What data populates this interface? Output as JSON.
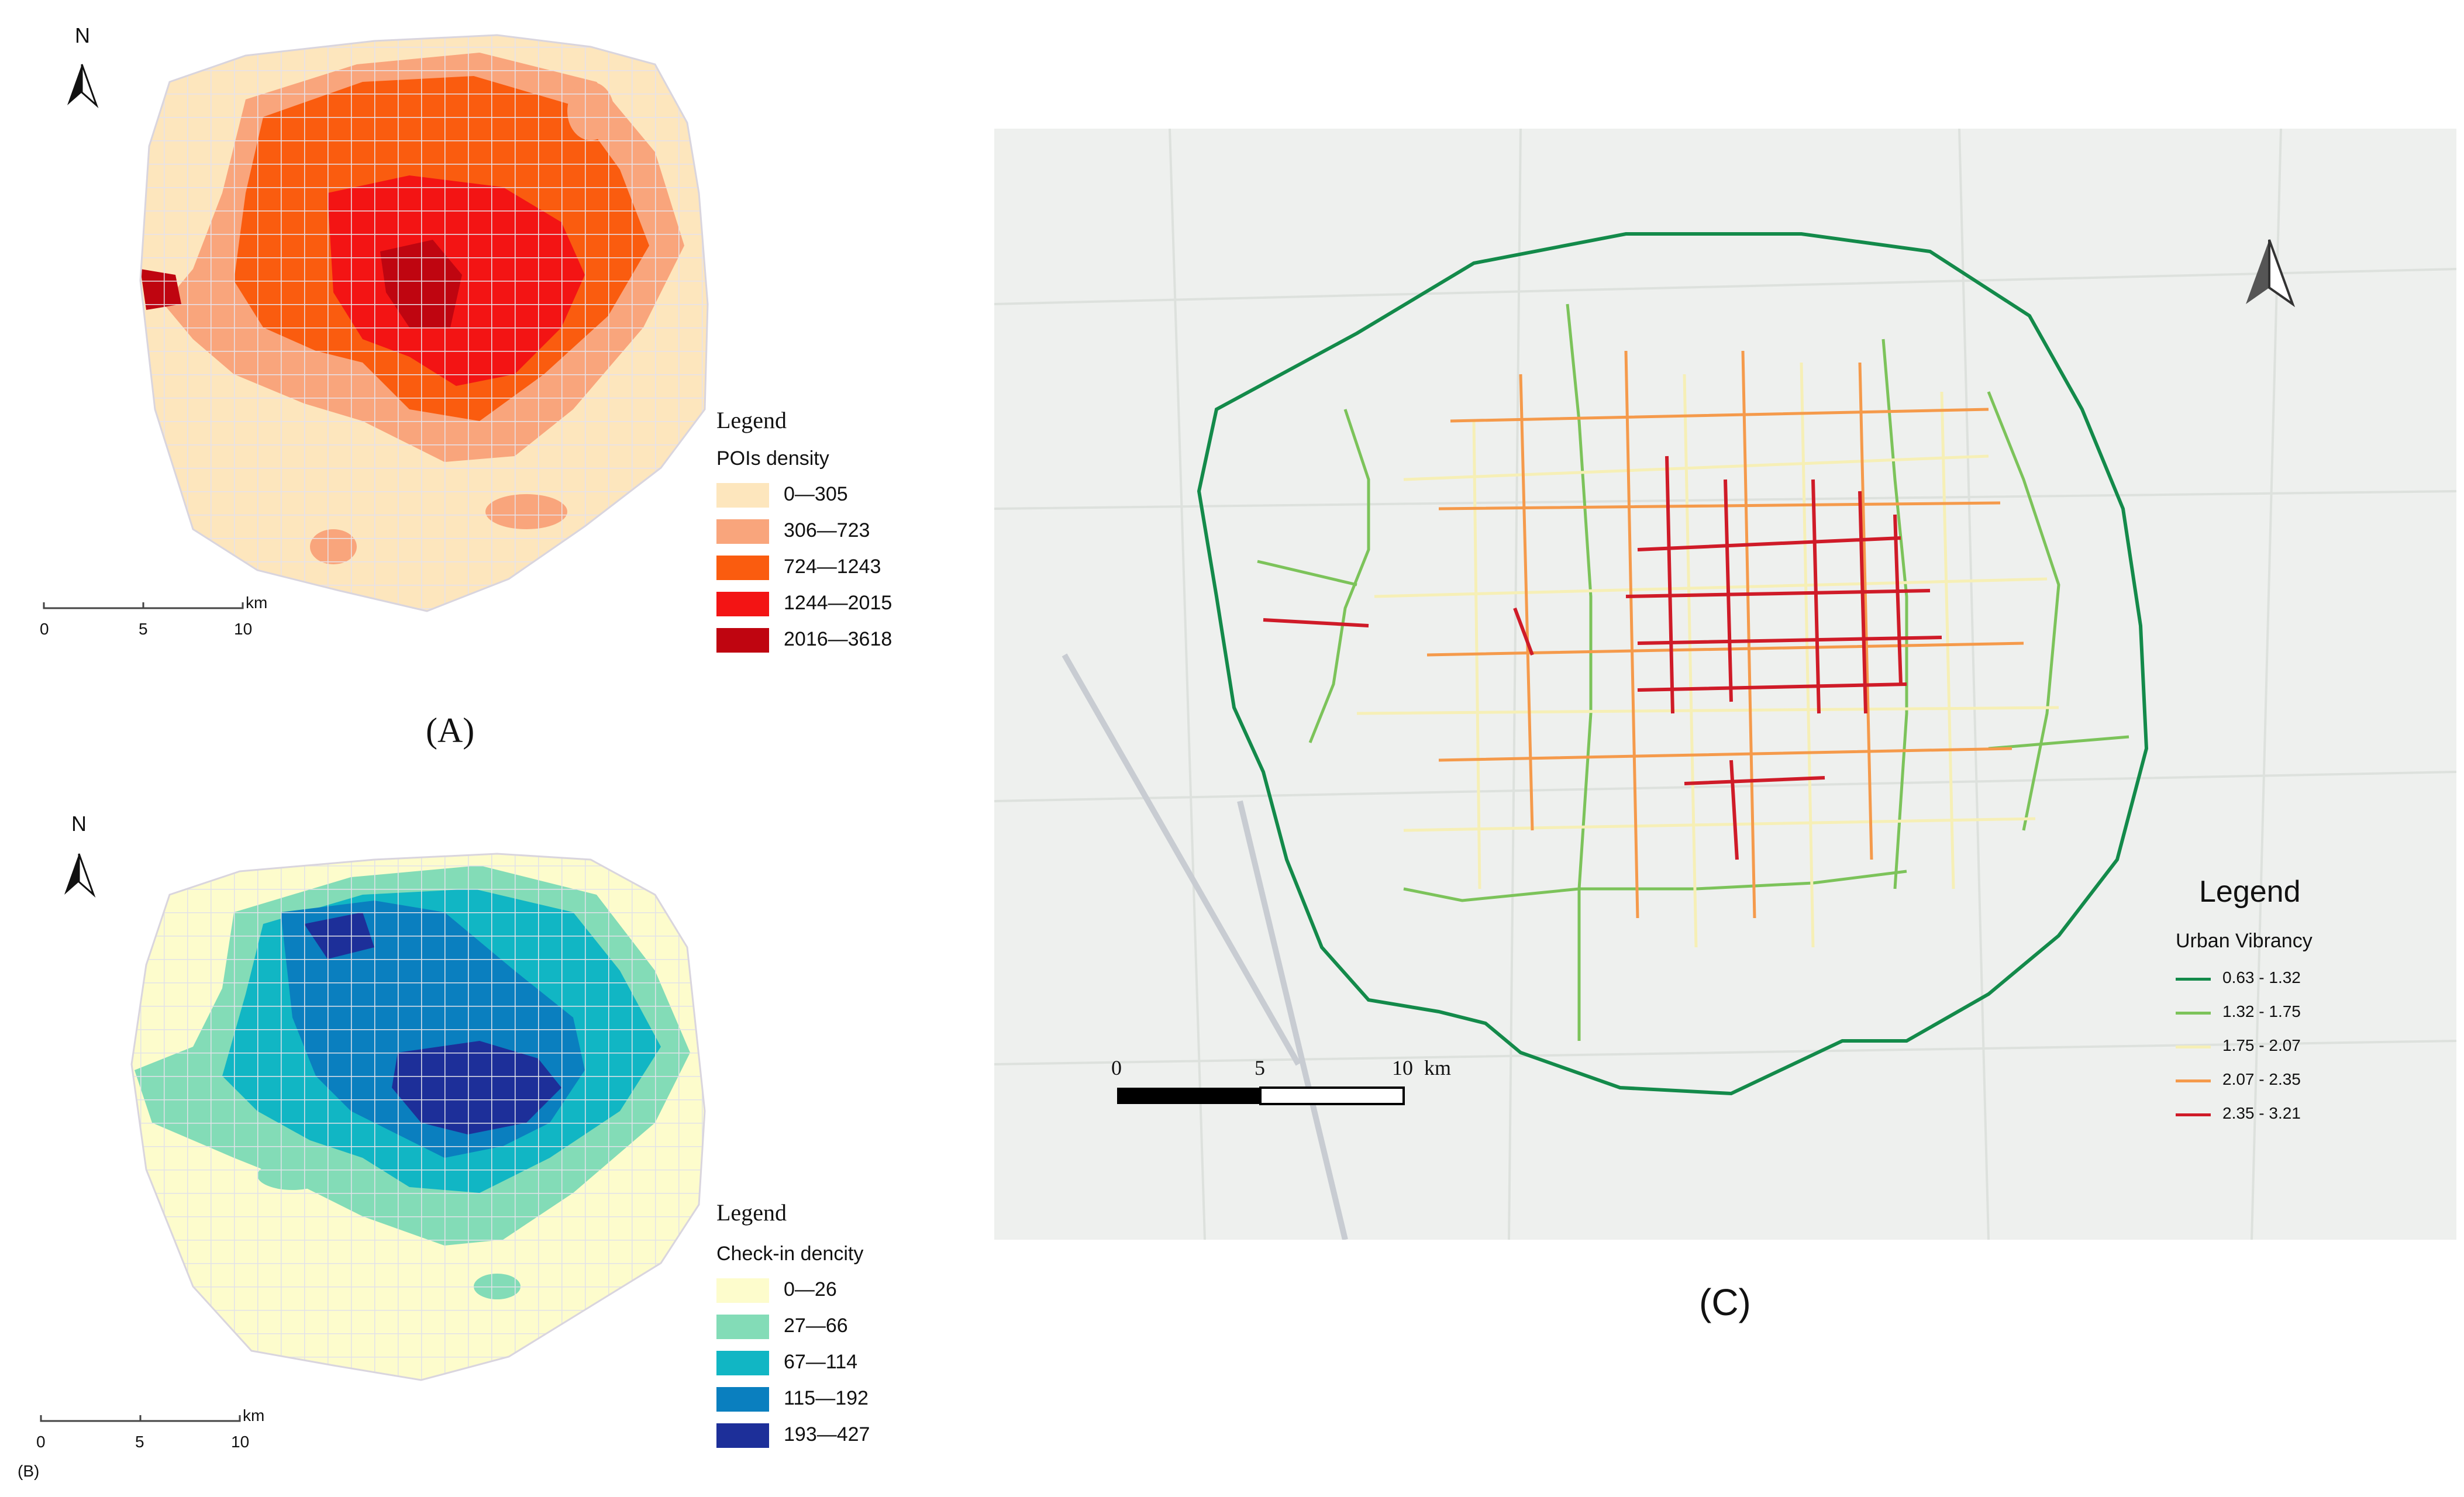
{
  "panels": {
    "a": {
      "label": "(A)",
      "north": "N",
      "scale": {
        "unit": "km",
        "ticks": [
          "0",
          "5",
          "10"
        ]
      },
      "legend": {
        "title": "Legend",
        "subtitle": "POIs density",
        "items": [
          {
            "label": "0—305",
            "color": "#fde6bd"
          },
          {
            "label": "306—723",
            "color": "#f9a57c"
          },
          {
            "label": "724—1243",
            "color": "#fa5c0f"
          },
          {
            "label": "1244—2015",
            "color": "#f31414"
          },
          {
            "label": "2016—3618",
            "color": "#bf0510"
          }
        ]
      }
    },
    "b": {
      "label": "(B)",
      "north": "N",
      "scale": {
        "unit": "km",
        "ticks": [
          "0",
          "5",
          "10"
        ]
      },
      "legend": {
        "title": "Legend",
        "subtitle": "Check-in dencity",
        "items": [
          {
            "label": "0—26",
            "color": "#fdfccc"
          },
          {
            "label": "27—66",
            "color": "#83dcb7"
          },
          {
            "label": "67—114",
            "color": "#11b6c4"
          },
          {
            "label": "115—192",
            "color": "#0a7fbf"
          },
          {
            "label": "193—427",
            "color": "#1d2f99"
          }
        ]
      }
    },
    "c": {
      "label": "(C)",
      "scale": {
        "ticks": [
          "0",
          "5",
          "10"
        ],
        "unit": "km"
      },
      "legend": {
        "title": "Legend",
        "subtitle": "Urban Vibrancy",
        "items": [
          {
            "label": "0.63 - 1.32",
            "color": "#138a4a"
          },
          {
            "label": "1.32 - 1.75",
            "color": "#7cc35a"
          },
          {
            "label": "1.75 - 2.07",
            "color": "#f6efb6"
          },
          {
            "label": "2.07 - 2.35",
            "color": "#f59a4b"
          },
          {
            "label": "2.35 - 3.21",
            "color": "#cf1b28"
          }
        ]
      }
    }
  }
}
